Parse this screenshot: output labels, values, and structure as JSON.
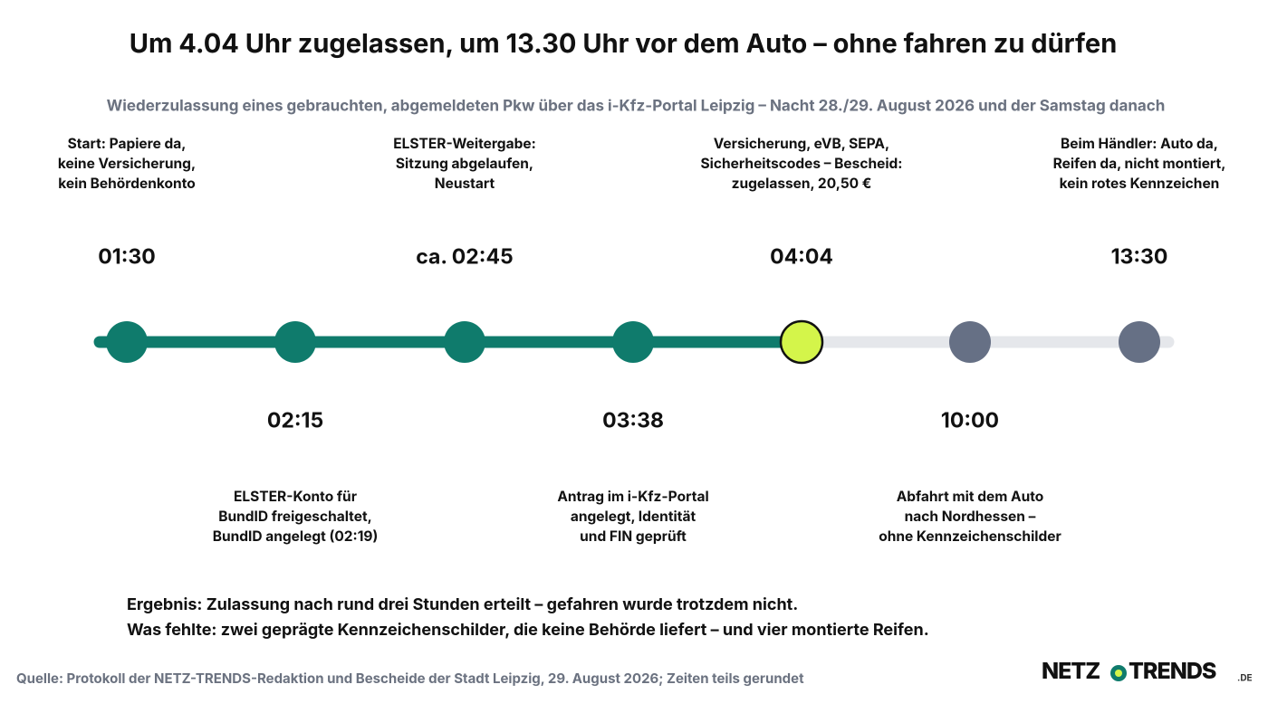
{
  "header": {
    "title": "Um 4.04 Uhr zugelassen, um 13.30 Uhr vor dem Auto – ohne fahren zu dürfen",
    "subtitle": "Wiederzulassung eines gebrauchten, abgemeldeten Pkw über das i-Kfz-Portal Leipzig – Nacht 28./29. August 2026 und der Samstag danach"
  },
  "events": [
    {
      "time": "01:30",
      "lines": [
        "Start: Papiere da,",
        "keine Versicherung,",
        "kein Behördenkonto"
      ]
    },
    {
      "time": "02:15",
      "lines": [
        "ELSTER-Konto für",
        "BundID freigeschaltet,",
        "BundID angelegt (02:19)"
      ]
    },
    {
      "time": "ca. 02:45",
      "lines": [
        "ELSTER-Weitergabe:",
        "Sitzung abgelaufen,",
        "Neustart"
      ]
    },
    {
      "time": "03:38",
      "lines": [
        "Antrag im i-Kfz-Portal",
        "angelegt, Identität",
        "und FIN geprüft"
      ]
    },
    {
      "time": "04:04",
      "lines": [
        "Versicherung, eVB, SEPA,",
        "Sicherheitscodes – Bescheid:",
        "zugelassen, 20,50 €"
      ]
    },
    {
      "time": "10:00",
      "lines": [
        "Abfahrt mit dem Auto",
        "nach Nordhessen –",
        "ohne Kennzeichenschilder"
      ]
    },
    {
      "time": "13:30",
      "lines": [
        "Beim Händler: Auto da,",
        "Reifen da, nicht montiert,",
        "kein rotes Kennzeichen"
      ]
    }
  ],
  "result": {
    "lines": [
      "Ergebnis: Zulassung nach rund drei Stunden erteilt – gefahren wurde trotzdem nicht.",
      "Was fehlte: zwei geprägte Kennzeichenschilder, die keine Behörde liefert – und vier montierte Reifen."
    ]
  },
  "footer": {
    "source": "Quelle: Protokoll der NETZ-TRENDS-Redaktion und Bescheide der Stadt Leipzig, 29. August 2026; Zeiten teils gerundet",
    "logo_left": "NETZ",
    "logo_right": "TRENDS",
    "logo_suffix": ".DE"
  }
}
